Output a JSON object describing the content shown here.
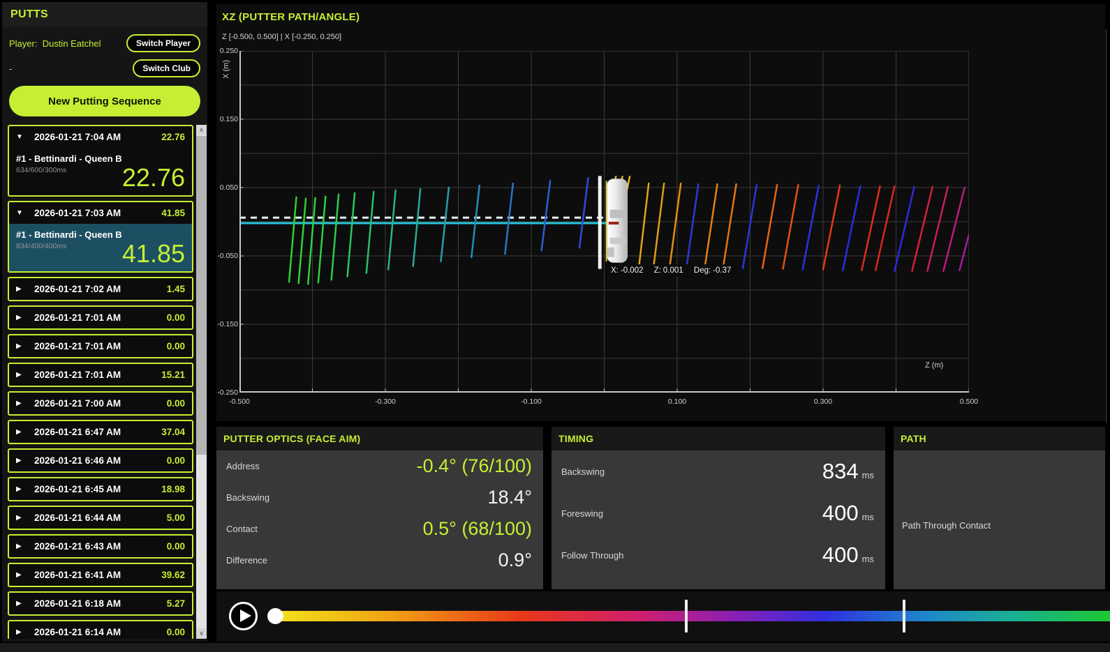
{
  "colors": {
    "accent_lime": "#c6ef33",
    "selected_session_bg": "#1d4f63",
    "target_line": "#25c4da",
    "panel_bg": "#383838"
  },
  "sidebar": {
    "title": "PUTTS",
    "player_label": "Player:",
    "player_name": "Dustin Eatchel",
    "club_value": "-",
    "switch_player_label": "Switch Player",
    "switch_club_label": "Switch Club",
    "new_sequence_label": "New Putting Sequence",
    "scroll_up_glyph": "∧",
    "scroll_down_glyph": "∨",
    "sessions": [
      {
        "date": "2026-01-21 7:04 AM",
        "value": "22.76",
        "expanded": true,
        "selected": false,
        "detail": {
          "club": "#1 - Bettinardi - Queen B",
          "timing": "634/600/300ms",
          "value": "22.76"
        }
      },
      {
        "date": "2026-01-21 7:03 AM",
        "value": "41.85",
        "expanded": true,
        "selected": true,
        "detail": {
          "club": "#1 - Bettinardi - Queen B",
          "timing": "834/400/400ms",
          "value": "41.85"
        }
      },
      {
        "date": "2026-01-21 7:02 AM",
        "value": "1.45",
        "expanded": false
      },
      {
        "date": "2026-01-21 7:01 AM",
        "value": "0.00",
        "expanded": false
      },
      {
        "date": "2026-01-21 7:01 AM",
        "value": "0.00",
        "expanded": false
      },
      {
        "date": "2026-01-21 7:01 AM",
        "value": "15.21",
        "expanded": false
      },
      {
        "date": "2026-01-21 7:00 AM",
        "value": "0.00",
        "expanded": false
      },
      {
        "date": "2026-01-21 6:47 AM",
        "value": "37.04",
        "expanded": false
      },
      {
        "date": "2026-01-21 6:46 AM",
        "value": "0.00",
        "expanded": false
      },
      {
        "date": "2026-01-21 6:45 AM",
        "value": "18.98",
        "expanded": false
      },
      {
        "date": "2026-01-21 6:44 AM",
        "value": "5.00",
        "expanded": false
      },
      {
        "date": "2026-01-21 6:43 AM",
        "value": "0.00",
        "expanded": false
      },
      {
        "date": "2026-01-21 6:41 AM",
        "value": "39.62",
        "expanded": false
      },
      {
        "date": "2026-01-21 6:18 AM",
        "value": "5.27",
        "expanded": false
      },
      {
        "date": "2026-01-21 6:14 AM",
        "value": "0.00",
        "expanded": false
      }
    ]
  },
  "chart_data": {
    "type": "line",
    "subtype": "putter-face-angle-ticks",
    "title": "XZ (PUTTER PATH/ANGLE)",
    "subtitle": "Z [-0.500, 0.500]   |   X [-0.250, 0.250]",
    "xlabel": "Z (m)",
    "ylabel": "X (m)",
    "xlim": [
      -0.5,
      0.5
    ],
    "ylim": [
      -0.25,
      0.25
    ],
    "x_tick_labels": [
      "-0.500",
      "-0.300",
      "-0.100",
      "0.100",
      "0.300",
      "0.500"
    ],
    "x_tick_values": [
      -0.5,
      -0.3,
      -0.1,
      0.1,
      0.3,
      0.5
    ],
    "y_tick_labels": [
      "0.250",
      "0.150",
      "0.050",
      "-0.050",
      "-0.150",
      "-0.250"
    ],
    "y_tick_values": [
      0.25,
      0.15,
      0.05,
      -0.05,
      -0.15,
      -0.25
    ],
    "grid": {
      "x_step": 0.1,
      "y_step": 0.05,
      "color": "#3c3c3c"
    },
    "target_line": {
      "x": -0.002,
      "z_from": -0.5,
      "z_to": 0.002,
      "color": "#25c4da",
      "width": 3
    },
    "aim_dashed_line": {
      "x": 0.006,
      "z_from": -0.5,
      "z_to": 0.0,
      "color": "#e8f0f2",
      "width": 3
    },
    "face_plane_bar": {
      "z": -0.006,
      "x_from": 0.067,
      "x_to": -0.069,
      "color": "#f2f2f2",
      "width": 5
    },
    "face_edge_line": {
      "z": 0.003,
      "x_from": 0.06,
      "x_to": -0.058,
      "color": "#d8c83c",
      "width": 2
    },
    "contact_tick": {
      "x": -0.002,
      "z_from": 0.006,
      "z_to": 0.02,
      "color": "#9c2418",
      "width": 4
    },
    "putter_head": {
      "z_from": 0.004,
      "z_to": 0.0315,
      "x_from": 0.0625,
      "x_to": -0.0595
    },
    "tooltip": {
      "x_label": "X:",
      "x": "-0.002",
      "z_label": "Z:",
      "z": "0.001",
      "deg_label": "Deg:",
      "deg": "-0.37"
    },
    "segments_format": [
      "z_bottom",
      "dz_lean",
      "x_bottom",
      "x_top",
      "color"
    ],
    "segments": [
      [
        -0.432,
        0.01,
        -0.088,
        0.036,
        "#2fd12f"
      ],
      [
        -0.419,
        0.01,
        -0.09,
        0.034,
        "#2fd134"
      ],
      [
        -0.406,
        0.01,
        -0.091,
        0.035,
        "#2ed13a"
      ],
      [
        -0.392,
        0.01,
        -0.089,
        0.037,
        "#2ccf42"
      ],
      [
        -0.374,
        0.01,
        -0.085,
        0.04,
        "#2bcb4e"
      ],
      [
        -0.352,
        0.01,
        -0.08,
        0.042,
        "#2ac65c"
      ],
      [
        -0.326,
        0.01,
        -0.075,
        0.044,
        "#29bf6e"
      ],
      [
        -0.296,
        0.01,
        -0.07,
        0.046,
        "#28b681"
      ],
      [
        -0.262,
        0.01,
        -0.065,
        0.048,
        "#27ab95"
      ],
      [
        -0.224,
        0.011,
        -0.058,
        0.05,
        "#269ea8"
      ],
      [
        -0.182,
        0.011,
        -0.052,
        0.053,
        "#258cb8"
      ],
      [
        -0.136,
        0.011,
        -0.047,
        0.056,
        "#2677c6"
      ],
      [
        -0.086,
        0.012,
        -0.042,
        0.06,
        "#2a60d2"
      ],
      [
        -0.034,
        0.012,
        -0.038,
        0.064,
        "#2e4bdb"
      ],
      [
        0.012,
        0.004,
        0.046,
        0.066,
        "#d9c31d"
      ],
      [
        0.021,
        0.004,
        0.046,
        0.066,
        "#dcc11c"
      ],
      [
        0.031,
        0.004,
        0.046,
        0.066,
        "#dfbd1b"
      ],
      [
        0.048,
        0.013,
        -0.062,
        0.056,
        "#e2a418"
      ],
      [
        0.068,
        0.014,
        -0.063,
        0.056,
        "#e49a16"
      ],
      [
        0.09,
        0.015,
        -0.064,
        0.056,
        "#e68e14"
      ],
      [
        0.113,
        0.016,
        -0.065,
        0.055,
        "#2a3ad8"
      ],
      [
        0.138,
        0.017,
        -0.066,
        0.055,
        "#e87f12"
      ],
      [
        0.163,
        0.018,
        -0.067,
        0.055,
        "#e97310"
      ],
      [
        0.19,
        0.019,
        -0.068,
        0.054,
        "#2a36dc"
      ],
      [
        0.217,
        0.02,
        -0.068,
        0.054,
        "#ea650f"
      ],
      [
        0.245,
        0.021,
        -0.069,
        0.054,
        "#e8500f"
      ],
      [
        0.272,
        0.022,
        -0.07,
        0.053,
        "#2a32e0"
      ],
      [
        0.3,
        0.023,
        -0.07,
        0.053,
        "#e43b12"
      ],
      [
        0.327,
        0.024,
        -0.071,
        0.052,
        "#2a2ee2"
      ],
      [
        0.353,
        0.025,
        -0.071,
        0.052,
        "#e02c16"
      ],
      [
        0.372,
        0.026,
        -0.071,
        0.052,
        "#dc2620"
      ],
      [
        0.398,
        0.027,
        -0.072,
        0.051,
        "#3028de"
      ],
      [
        0.422,
        0.028,
        -0.072,
        0.051,
        "#d4203a"
      ],
      [
        0.443,
        0.028,
        -0.072,
        0.051,
        "#c81d5e"
      ],
      [
        0.465,
        0.029,
        -0.072,
        0.05,
        "#bc1a80"
      ],
      [
        0.487,
        0.03,
        -0.071,
        0.05,
        "#a819a2"
      ],
      [
        0.508,
        0.031,
        -0.07,
        0.05,
        "#9918b8"
      ]
    ]
  },
  "panels": {
    "optics": {
      "title": "PUTTER OPTICS (FACE AIM)",
      "rows": [
        {
          "label": "Address",
          "value": "-0.4° (76/100)",
          "accent": true
        },
        {
          "label": "Backswing",
          "value": "18.4°",
          "accent": false
        },
        {
          "label": "Contact",
          "value": "0.5° (68/100)",
          "accent": true
        },
        {
          "label": "Difference",
          "value": "0.9°",
          "accent": false
        }
      ]
    },
    "timing": {
      "title": "TIMING",
      "rows": [
        {
          "label": "Backswing",
          "value": "834",
          "unit": "ms"
        },
        {
          "label": "Foreswing",
          "value": "400",
          "unit": "ms"
        },
        {
          "label": "Follow Through",
          "value": "400",
          "unit": "ms"
        }
      ]
    },
    "path": {
      "title": "PATH",
      "label": "Path Through Contact"
    }
  },
  "playbar": {
    "position_pct": 0,
    "marker_pcts": [
      49.4,
      75.3
    ],
    "gradient": [
      {
        "pct": 0,
        "color": "#f2e61a"
      },
      {
        "pct": 14,
        "color": "#f0a414"
      },
      {
        "pct": 30,
        "color": "#e8381a"
      },
      {
        "pct": 44,
        "color": "#cf1f6e"
      },
      {
        "pct": 55,
        "color": "#8c1fb4"
      },
      {
        "pct": 66,
        "color": "#2f2fe0"
      },
      {
        "pct": 78,
        "color": "#1f86cc"
      },
      {
        "pct": 88,
        "color": "#1aae96"
      },
      {
        "pct": 100,
        "color": "#1ec732"
      }
    ]
  }
}
